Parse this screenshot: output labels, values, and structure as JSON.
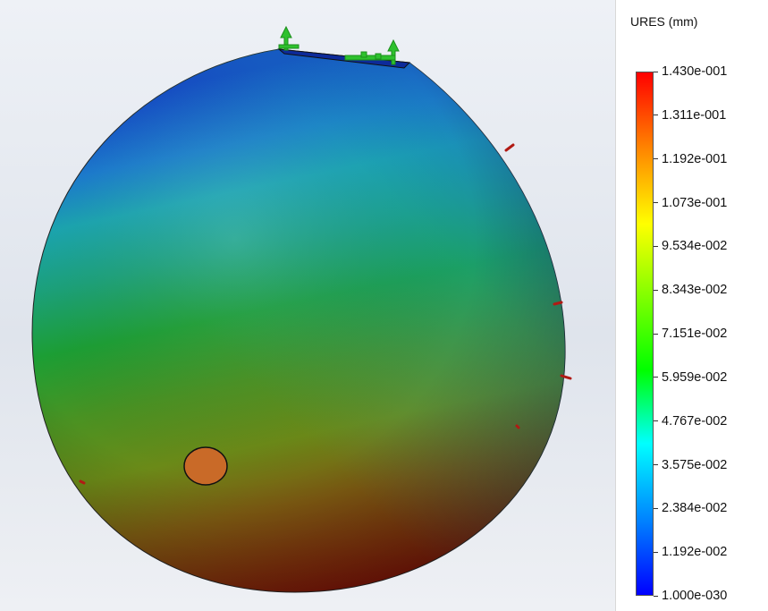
{
  "legend": {
    "title": "URES (mm)",
    "ticks": [
      {
        "label": "1.430e-001",
        "value": 0.143
      },
      {
        "label": "1.311e-001",
        "value": 0.1311
      },
      {
        "label": "1.192e-001",
        "value": 0.1192
      },
      {
        "label": "1.073e-001",
        "value": 0.1073
      },
      {
        "label": "9.534e-002",
        "value": 0.09534
      },
      {
        "label": "8.343e-002",
        "value": 0.08343
      },
      {
        "label": "7.151e-002",
        "value": 0.07151
      },
      {
        "label": "5.959e-002",
        "value": 0.05959
      },
      {
        "label": "4.767e-002",
        "value": 0.04767
      },
      {
        "label": "3.575e-002",
        "value": 0.03575
      },
      {
        "label": "2.384e-002",
        "value": 0.02384
      },
      {
        "label": "1.192e-002",
        "value": 0.01192
      },
      {
        "label": "1.000e-030",
        "value": 1e-30
      }
    ],
    "colormap": [
      "#ff0000",
      "#ff8000",
      "#ffff00",
      "#80ff00",
      "#00ff00",
      "#00ffff",
      "#0080ff",
      "#0000ff"
    ]
  },
  "model": {
    "colors": {
      "top": "#1a3fc0",
      "upper": "#1bb5b5",
      "middle": "#1ca21c",
      "lower": "#6e8a14",
      "bottom": "#8b1e0c",
      "hole": "#c96a28",
      "fixture_arrows": "#2ec12e",
      "load_markers": "#b11a14"
    }
  }
}
